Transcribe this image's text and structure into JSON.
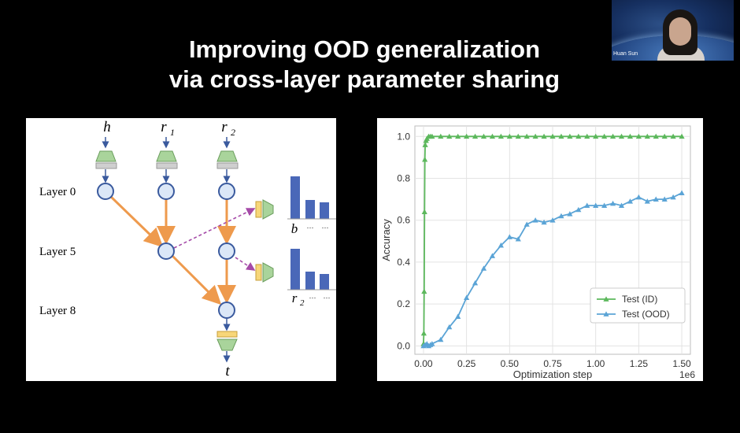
{
  "slide": {
    "title_line1": "Improving OOD generalization",
    "title_line2": "via cross-layer parameter sharing"
  },
  "video": {
    "participant_name": "Huan Sun"
  },
  "diagram": {
    "inputs": [
      "h",
      "r",
      "r"
    ],
    "input_subscripts": [
      "",
      "1",
      "2"
    ],
    "layer_labels": [
      "Layer 0",
      "Layer 5",
      "Layer 8"
    ],
    "output_label": "t",
    "probe_label_top": "b",
    "probe_label_bottom": "r",
    "probe_label_bottom_sub": "2",
    "ellipsis": "···",
    "colors": {
      "node_fill": "#dbe7f7",
      "node_stroke": "#3a5a9e",
      "edge": "#ee9a4d",
      "probe_edge": "#a54aa8",
      "bar": "#4a68b8",
      "trapezoid": "#a9d49b",
      "module": "#f7d679"
    }
  },
  "chart_data": {
    "type": "line",
    "xlabel": "Optimization step",
    "ylabel": "Accuracy",
    "x_scale_label": "1e6",
    "xlim": [
      -0.05,
      1.55
    ],
    "ylim": [
      -0.04,
      1.05
    ],
    "xticks": [
      "0.00",
      "0.25",
      "0.50",
      "0.75",
      "1.00",
      "1.25",
      "1.50"
    ],
    "xtick_values": [
      0,
      0.25,
      0.5,
      0.75,
      1.0,
      1.25,
      1.5
    ],
    "yticks": [
      "0.0",
      "0.2",
      "0.4",
      "0.6",
      "0.8",
      "1.0"
    ],
    "ytick_values": [
      0,
      0.2,
      0.4,
      0.6,
      0.8,
      1.0
    ],
    "grid": true,
    "legend_position": "lower-right",
    "series": [
      {
        "name": "Test (ID)",
        "color": "#5cb85c",
        "x": [
          0,
          0.002,
          0.004,
          0.006,
          0.008,
          0.01,
          0.015,
          0.02,
          0.03,
          0.04,
          0.05,
          0.1,
          0.15,
          0.2,
          0.25,
          0.3,
          0.35,
          0.4,
          0.45,
          0.5,
          0.55,
          0.6,
          0.65,
          0.7,
          0.75,
          0.8,
          0.85,
          0.9,
          0.95,
          1.0,
          1.05,
          1.1,
          1.15,
          1.2,
          1.25,
          1.3,
          1.35,
          1.4,
          1.45,
          1.5
        ],
        "y": [
          0.01,
          0.06,
          0.26,
          0.64,
          0.89,
          0.96,
          0.98,
          0.99,
          1.0,
          1.0,
          1.0,
          1.0,
          1.0,
          1.0,
          1.0,
          1.0,
          1.0,
          1.0,
          1.0,
          1.0,
          1.0,
          1.0,
          1.0,
          1.0,
          1.0,
          1.0,
          1.0,
          1.0,
          1.0,
          1.0,
          1.0,
          1.0,
          1.0,
          1.0,
          1.0,
          1.0,
          1.0,
          1.0,
          1.0,
          1.0
        ]
      },
      {
        "name": "Test (OOD)",
        "color": "#5ba4d6",
        "x": [
          0,
          0.01,
          0.02,
          0.03,
          0.04,
          0.05,
          0.1,
          0.15,
          0.2,
          0.25,
          0.3,
          0.35,
          0.4,
          0.45,
          0.5,
          0.55,
          0.6,
          0.65,
          0.7,
          0.75,
          0.8,
          0.85,
          0.9,
          0.95,
          1.0,
          1.05,
          1.1,
          1.15,
          1.2,
          1.25,
          1.3,
          1.35,
          1.4,
          1.45,
          1.5
        ],
        "y": [
          0.0,
          0.005,
          0.01,
          0.0,
          0.005,
          0.01,
          0.03,
          0.09,
          0.14,
          0.23,
          0.3,
          0.37,
          0.43,
          0.48,
          0.52,
          0.51,
          0.58,
          0.6,
          0.59,
          0.6,
          0.62,
          0.63,
          0.65,
          0.67,
          0.67,
          0.67,
          0.68,
          0.67,
          0.69,
          0.71,
          0.69,
          0.7,
          0.7,
          0.71,
          0.73
        ]
      }
    ]
  }
}
